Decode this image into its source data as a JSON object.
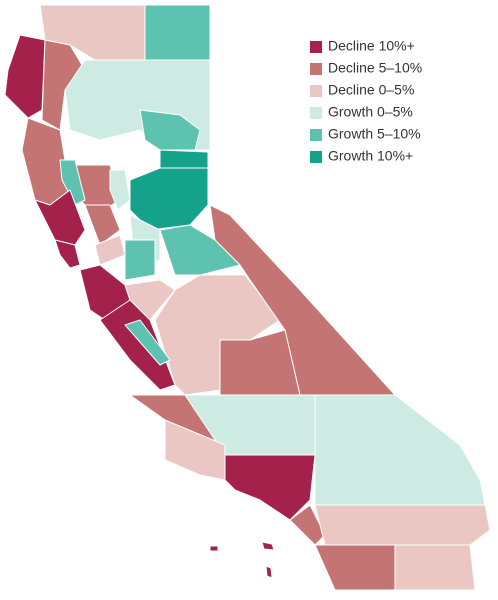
{
  "legend": [
    {
      "label": "Decline 10%+",
      "color": "#a3214b"
    },
    {
      "label": "Decline 5–10%",
      "color": "#c47472"
    },
    {
      "label": "Decline 0–5%",
      "color": "#ebc7c3"
    },
    {
      "label": "Growth 0–5%",
      "color": "#cdeae3"
    },
    {
      "label": "Growth 5–10%",
      "color": "#5ec2b0"
    },
    {
      "label": "Growth 10%+",
      "color": "#14a38a"
    }
  ]
}
